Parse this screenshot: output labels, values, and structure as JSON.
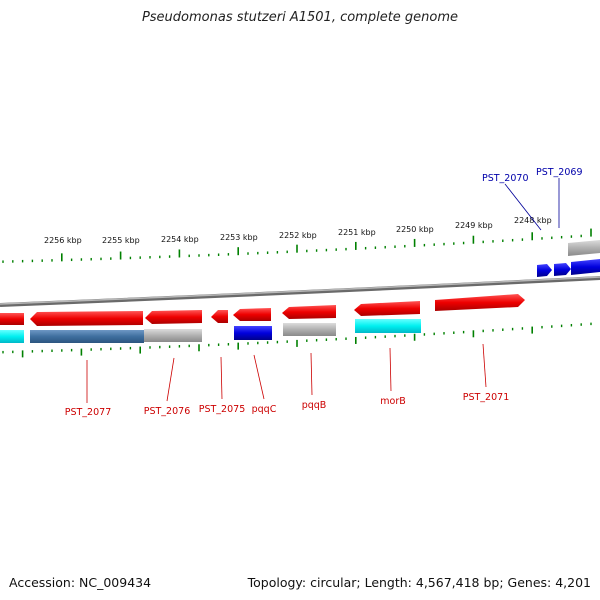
{
  "title": "Pseudomonas stutzeri A1501, complete genome",
  "footer": {
    "accession": "Accession: NC_009434",
    "summary": "Topology: circular; Length: 4,567,418 bp; Genes: 4,201"
  },
  "colors": {
    "forward_gene": "#ff0000",
    "highlight_gene": "#0000cc",
    "cds_track": "#00ffff",
    "other_feature": "#aaaaaa",
    "tick": "#008000",
    "backbone": "#888888"
  },
  "scale": {
    "ticks": [
      {
        "label": "2256 kbp"
      },
      {
        "label": "2255 kbp"
      },
      {
        "label": "2254 kbp"
      },
      {
        "label": "2253 kbp"
      },
      {
        "label": "2252 kbp"
      },
      {
        "label": "2251 kbp"
      },
      {
        "label": "2250 kbp"
      },
      {
        "label": "2249 kbp"
      },
      {
        "label": "2248 kbp"
      }
    ]
  },
  "genes_top": [
    {
      "label": "PST_2070"
    },
    {
      "label": "PST_2069"
    }
  ],
  "genes_bottom": [
    {
      "label": "PST_2077"
    },
    {
      "label": "PST_2076"
    },
    {
      "label": "PST_2075"
    },
    {
      "label": "pqqC"
    },
    {
      "label": "pqqB"
    },
    {
      "label": "morB"
    },
    {
      "label": "PST_2071"
    }
  ]
}
